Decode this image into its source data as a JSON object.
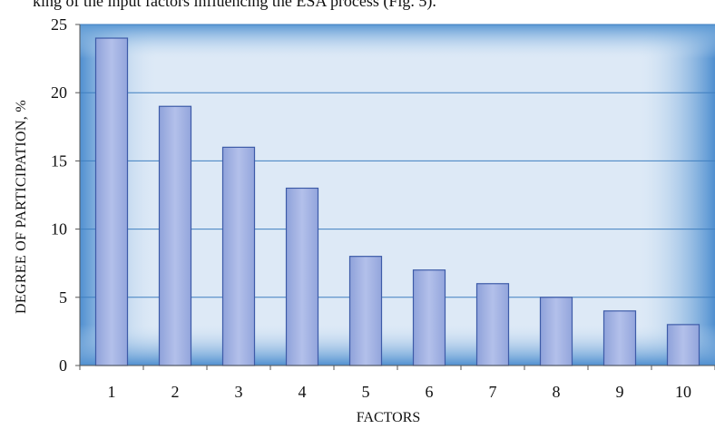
{
  "caption_partial": "king of the input factors influencing the ESA process (Fig. 5).",
  "chart_data": {
    "type": "bar",
    "categories": [
      "1",
      "2",
      "3",
      "4",
      "5",
      "6",
      "7",
      "8",
      "9",
      "10"
    ],
    "values": [
      24,
      19,
      16,
      13,
      8,
      7,
      6,
      5,
      4,
      3
    ],
    "xlabel": "FACTORS",
    "ylabel": "DEGREE OF PARTICIPATION,   %",
    "ylim": [
      0,
      25
    ],
    "yticks": [
      0,
      5,
      10,
      15,
      20,
      25
    ],
    "grid": true,
    "legend": "none"
  },
  "colors": {
    "bar_fill": "#a3b3e2",
    "bar_stroke": "#3d5ba8",
    "frame_glow": "#6aa6d8",
    "plot_bg": "#dde9f6",
    "grid": "#3f7fc0"
  }
}
